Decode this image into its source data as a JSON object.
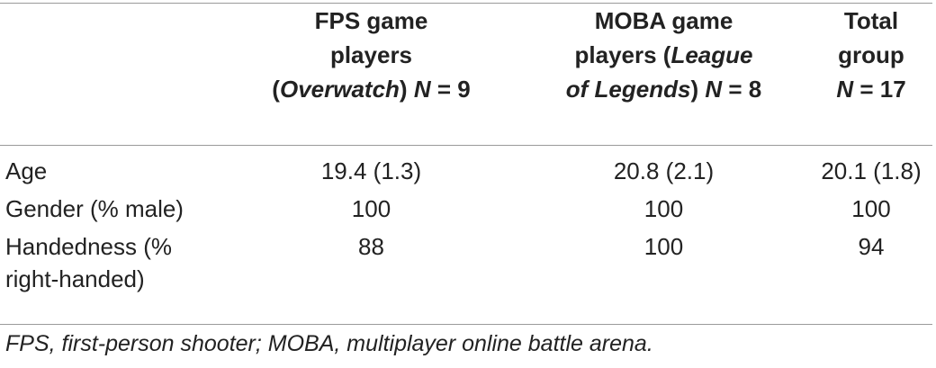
{
  "table": {
    "headers": [
      {
        "line1": "FPS game",
        "line2": "players",
        "line3_italic": "Overwatch",
        "line3_n_label": "N",
        "line3_n_value": " = 9"
      },
      {
        "line1": "MOBA game",
        "line2a": "players (",
        "line2_italic": "League",
        "line3_italic": "of Legends",
        "line3_n_label": "N",
        "line3_n_value": " = 8"
      },
      {
        "line1": "Total",
        "line2": "group",
        "line3_n_label": "N",
        "line3_n_value": " = 17"
      }
    ],
    "rows": [
      {
        "label": "Age",
        "values": [
          "19.4 (1.3)",
          "20.8 (2.1)",
          "20.1 (1.8)"
        ]
      },
      {
        "label": "Gender (% male)",
        "values": [
          "100",
          "100",
          "100"
        ]
      },
      {
        "label_line1": "Handedness (%",
        "label_line2": "right-handed)",
        "values": [
          "88",
          "100",
          "94"
        ]
      }
    ]
  },
  "footnote": "FPS, first-person shooter; MOBA, multiplayer online battle arena."
}
